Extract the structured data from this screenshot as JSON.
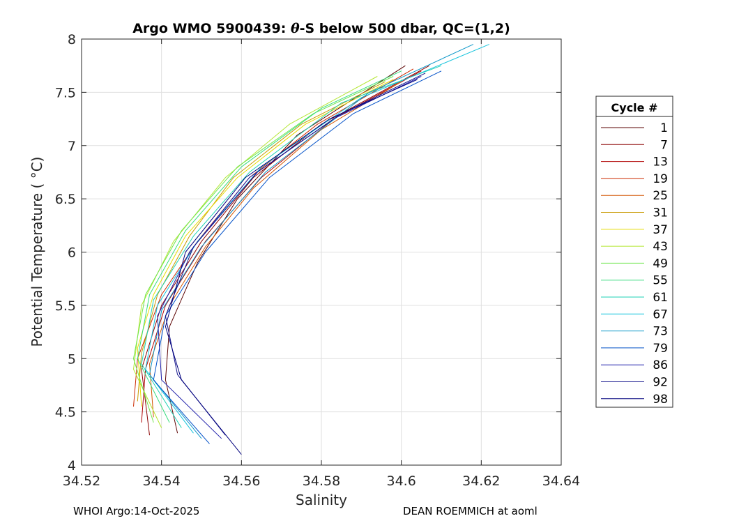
{
  "chart_data": {
    "type": "line",
    "title_prefix": "Argo WMO 5900439: ",
    "title_theta": "θ",
    "title_suffix": "-S below 500 dbar,  QC=(1,2)",
    "xlabel": "Salinity",
    "ylabel": "Potential Temperature ( °C)",
    "xlim": [
      34.52,
      34.64
    ],
    "ylim": [
      4,
      8
    ],
    "xticks": [
      34.52,
      34.54,
      34.56,
      34.58,
      34.6,
      34.62,
      34.64
    ],
    "xtick_labels": [
      "34.52",
      "34.54",
      "34.56",
      "34.58",
      "34.6",
      "34.62",
      "34.64"
    ],
    "yticks": [
      4,
      4.5,
      5,
      5.5,
      6,
      6.5,
      7,
      7.5,
      8
    ],
    "ytick_labels": [
      "4",
      "4.5",
      "5",
      "5.5",
      "6",
      "6.5",
      "7",
      "7.5",
      "8"
    ],
    "grid": true,
    "legend_title": "Cycle #",
    "legend_position": "right",
    "legend": [
      {
        "name": "1",
        "color": "#5a0000"
      },
      {
        "name": "7",
        "color": "#8b0000"
      },
      {
        "name": "13",
        "color": "#b00000"
      },
      {
        "name": "19",
        "color": "#cc2a00"
      },
      {
        "name": "25",
        "color": "#d45500"
      },
      {
        "name": "31",
        "color": "#c89a00"
      },
      {
        "name": "37",
        "color": "#e6dc00"
      },
      {
        "name": "43",
        "color": "#b4e632"
      },
      {
        "name": "49",
        "color": "#6ee64b"
      },
      {
        "name": "55",
        "color": "#37dc7d"
      },
      {
        "name": "61",
        "color": "#1ed2b4"
      },
      {
        "name": "67",
        "color": "#14c3dc"
      },
      {
        "name": "73",
        "color": "#0a96c8"
      },
      {
        "name": "79",
        "color": "#0050c8"
      },
      {
        "name": "86",
        "color": "#1e1eaa"
      },
      {
        "name": "92",
        "color": "#14148c"
      },
      {
        "name": "98",
        "color": "#00007d"
      }
    ],
    "series": [
      {
        "name": "1",
        "color": "#5a0000",
        "points": [
          [
            34.544,
            4.3
          ],
          [
            34.541,
            4.8
          ],
          [
            34.542,
            5.3
          ],
          [
            34.549,
            5.9
          ],
          [
            34.559,
            6.5
          ],
          [
            34.574,
            7.1
          ],
          [
            34.601,
            7.75
          ]
        ]
      },
      {
        "name": "7",
        "color": "#8b0000",
        "points": [
          [
            34.537,
            4.28
          ],
          [
            34.535,
            4.9
          ],
          [
            34.54,
            5.5
          ],
          [
            34.55,
            6.1
          ],
          [
            34.563,
            6.7
          ],
          [
            34.58,
            7.2
          ],
          [
            34.607,
            7.75
          ]
        ]
      },
      {
        "name": "13",
        "color": "#b00000",
        "points": [
          [
            34.535,
            4.4
          ],
          [
            34.536,
            4.9
          ],
          [
            34.541,
            5.5
          ],
          [
            34.551,
            6.1
          ],
          [
            34.565,
            6.7
          ],
          [
            34.583,
            7.25
          ],
          [
            34.605,
            7.7
          ]
        ]
      },
      {
        "name": "19",
        "color": "#cc2a00",
        "points": [
          [
            34.533,
            4.55
          ],
          [
            34.534,
            5.0
          ],
          [
            34.54,
            5.6
          ],
          [
            34.549,
            6.1
          ],
          [
            34.562,
            6.7
          ],
          [
            34.579,
            7.2
          ],
          [
            34.603,
            7.72
          ]
        ]
      },
      {
        "name": "25",
        "color": "#d45500",
        "points": [
          [
            34.538,
            4.45
          ],
          [
            34.537,
            4.95
          ],
          [
            34.542,
            5.5
          ],
          [
            34.551,
            6.05
          ],
          [
            34.563,
            6.6
          ],
          [
            34.58,
            7.15
          ],
          [
            34.6,
            7.6
          ]
        ]
      },
      {
        "name": "31",
        "color": "#c89a00",
        "points": [
          [
            34.534,
            4.6
          ],
          [
            34.535,
            5.05
          ],
          [
            34.539,
            5.6
          ],
          [
            34.547,
            6.15
          ],
          [
            34.558,
            6.7
          ],
          [
            34.575,
            7.2
          ],
          [
            34.596,
            7.6
          ]
        ]
      },
      {
        "name": "37",
        "color": "#e6dc00",
        "points": [
          [
            34.535,
            4.55
          ],
          [
            34.534,
            5.1
          ],
          [
            34.538,
            5.6
          ],
          [
            34.546,
            6.15
          ],
          [
            34.559,
            6.7
          ],
          [
            34.576,
            7.2
          ],
          [
            34.598,
            7.62
          ]
        ]
      },
      {
        "name": "43",
        "color": "#b4e632",
        "points": [
          [
            34.54,
            4.35
          ],
          [
            34.533,
            4.9
          ],
          [
            34.535,
            5.5
          ],
          [
            34.543,
            6.1
          ],
          [
            34.556,
            6.7
          ],
          [
            34.572,
            7.2
          ],
          [
            34.594,
            7.65
          ]
        ]
      },
      {
        "name": "49",
        "color": "#6ee64b",
        "points": [
          [
            34.538,
            4.4
          ],
          [
            34.533,
            5.0
          ],
          [
            34.536,
            5.6
          ],
          [
            34.545,
            6.2
          ],
          [
            34.559,
            6.8
          ],
          [
            34.578,
            7.3
          ],
          [
            34.598,
            7.65
          ]
        ]
      },
      {
        "name": "55",
        "color": "#37dc7d",
        "points": [
          [
            34.542,
            4.4
          ],
          [
            34.534,
            5.0
          ],
          [
            34.537,
            5.6
          ],
          [
            34.546,
            6.2
          ],
          [
            34.56,
            6.8
          ],
          [
            34.58,
            7.35
          ],
          [
            34.6,
            7.7
          ]
        ]
      },
      {
        "name": "61",
        "color": "#1ed2b4",
        "points": [
          [
            34.545,
            4.35
          ],
          [
            34.535,
            4.95
          ],
          [
            34.538,
            5.55
          ],
          [
            34.548,
            6.15
          ],
          [
            34.562,
            6.75
          ],
          [
            34.585,
            7.4
          ],
          [
            34.61,
            7.75
          ]
        ]
      },
      {
        "name": "67",
        "color": "#14c3dc",
        "points": [
          [
            34.548,
            4.3
          ],
          [
            34.536,
            4.9
          ],
          [
            34.539,
            5.5
          ],
          [
            34.549,
            6.1
          ],
          [
            34.565,
            6.8
          ],
          [
            34.59,
            7.45
          ],
          [
            34.622,
            7.95
          ]
        ]
      },
      {
        "name": "73",
        "color": "#0a96c8",
        "points": [
          [
            34.55,
            4.25
          ],
          [
            34.537,
            4.85
          ],
          [
            34.54,
            5.45
          ],
          [
            34.55,
            6.05
          ],
          [
            34.566,
            6.75
          ],
          [
            34.592,
            7.5
          ],
          [
            34.618,
            7.95
          ]
        ]
      },
      {
        "name": "79",
        "color": "#0050c8",
        "points": [
          [
            34.552,
            4.2
          ],
          [
            34.538,
            4.8
          ],
          [
            34.541,
            5.4
          ],
          [
            34.551,
            6.0
          ],
          [
            34.567,
            6.7
          ],
          [
            34.588,
            7.3
          ],
          [
            34.61,
            7.7
          ]
        ]
      },
      {
        "name": "86",
        "color": "#1e1eaa",
        "points": [
          [
            34.555,
            4.25
          ],
          [
            34.54,
            4.8
          ],
          [
            34.539,
            5.4
          ],
          [
            34.547,
            6.0
          ],
          [
            34.562,
            6.7
          ],
          [
            34.583,
            7.25
          ],
          [
            34.605,
            7.65
          ]
        ]
      },
      {
        "name": "92",
        "color": "#14148c",
        "points": [
          [
            34.556,
            4.28
          ],
          [
            34.544,
            4.85
          ],
          [
            34.541,
            5.4
          ],
          [
            34.548,
            6.05
          ],
          [
            34.564,
            6.75
          ],
          [
            34.585,
            7.3
          ],
          [
            34.606,
            7.68
          ]
        ]
      },
      {
        "name": "98",
        "color": "#00007d",
        "points": [
          [
            34.56,
            4.1
          ],
          [
            34.545,
            4.8
          ],
          [
            34.541,
            5.3
          ],
          [
            34.546,
            6.0
          ],
          [
            34.561,
            6.7
          ],
          [
            34.582,
            7.25
          ],
          [
            34.604,
            7.62
          ]
        ]
      }
    ]
  },
  "footer": {
    "left": "WHOI Argo:14-Oct-2025",
    "right": "DEAN ROEMMICH at aoml"
  }
}
